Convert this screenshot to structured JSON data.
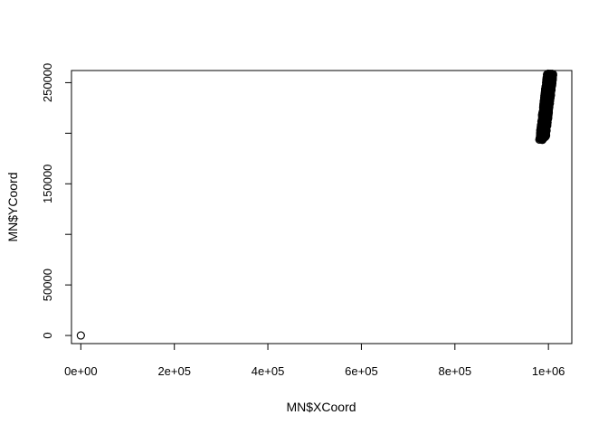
{
  "chart_data": {
    "type": "scatter",
    "title": "",
    "xlabel": "MN$XCoord",
    "ylabel": "MN$YCoord",
    "xlim": [
      -20000,
      1050000
    ],
    "ylim": [
      -8000,
      262000
    ],
    "x_ticks": [
      {
        "value": 0,
        "label": "0e+00"
      },
      {
        "value": 200000,
        "label": "2e+05"
      },
      {
        "value": 400000,
        "label": "4e+05"
      },
      {
        "value": 600000,
        "label": "6e+05"
      },
      {
        "value": 800000,
        "label": "8e+05"
      },
      {
        "value": 1000000,
        "label": "1e+06"
      }
    ],
    "y_ticks": [
      {
        "value": 0,
        "label": "0"
      },
      {
        "value": 50000,
        "label": "50000"
      },
      {
        "value": 150000,
        "label": "150000"
      },
      {
        "value": 250000,
        "label": "250000"
      }
    ],
    "y_minor_ticks": [
      100000,
      200000
    ],
    "marker": "open-circle",
    "grid": false,
    "legend": "none",
    "clusters": [
      {
        "x": [
          0,
          0
        ],
        "y": [
          0,
          0
        ],
        "count": 2
      },
      {
        "x_range": [
          975000,
          1010000
        ],
        "y_range": [
          193000,
          259000
        ],
        "count": 900
      }
    ],
    "series": [
      {
        "x": [
          0,
          500,
          975000,
          978000,
          982000,
          985000,
          988000,
          990000,
          993000,
          996000,
          999000,
          1002000,
          1005000,
          1008000
        ],
        "y": [
          0,
          300,
          193000,
          196000,
          200000,
          206000,
          212000,
          218000,
          224000,
          230000,
          236000,
          242000,
          250000,
          258000
        ]
      }
    ]
  }
}
